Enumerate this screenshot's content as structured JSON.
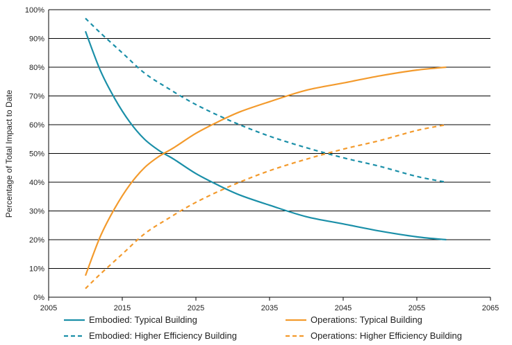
{
  "chart_data": {
    "type": "line",
    "title": "",
    "xlabel": "",
    "ylabel": "Percentage of Total Impact to Date",
    "xlim": [
      2005,
      2065
    ],
    "ylim": [
      0,
      100
    ],
    "x_ticks": [
      "2005",
      "2015",
      "2025",
      "2035",
      "2045",
      "2055",
      "2065"
    ],
    "y_ticks": [
      "0%",
      "10%",
      "20%",
      "30%",
      "40%",
      "50%",
      "60%",
      "70%",
      "80%",
      "90%",
      "100%"
    ],
    "grid": "horizontal",
    "legend_position": "bottom",
    "series": [
      {
        "name": "Embodied: Typical Building",
        "color": "#1a8fa8",
        "dash": "solid",
        "x": [
          2010,
          2012,
          2014,
          2016,
          2018,
          2020,
          2022,
          2025,
          2028,
          2031,
          2035,
          2040,
          2045,
          2050,
          2055,
          2059
        ],
        "values": [
          92.5,
          79,
          69,
          61,
          55,
          51,
          48,
          43,
          39,
          35.5,
          32,
          28,
          25.5,
          23,
          21,
          20
        ]
      },
      {
        "name": "Operations: Typical Building",
        "color": "#f39a2c",
        "dash": "solid",
        "x": [
          2010,
          2012,
          2014,
          2016,
          2018,
          2020,
          2022,
          2025,
          2028,
          2031,
          2035,
          2040,
          2045,
          2050,
          2055,
          2059
        ],
        "values": [
          7.5,
          21,
          31,
          39,
          45,
          49,
          52,
          57,
          61,
          64.5,
          68,
          72,
          74.5,
          77,
          79,
          80
        ]
      },
      {
        "name": "Embodied: Higher Efficiency Building",
        "color": "#1a8fa8",
        "dash": "dashed",
        "x": [
          2010,
          2012,
          2015,
          2018,
          2021,
          2025,
          2030,
          2035,
          2040,
          2045,
          2050,
          2055,
          2059
        ],
        "values": [
          97,
          92,
          85,
          78,
          73,
          67,
          61,
          56,
          52,
          48.5,
          45.5,
          42,
          40
        ]
      },
      {
        "name": "Operations: Higher Efficiency Building",
        "color": "#f39a2c",
        "dash": "dashed",
        "x": [
          2010,
          2012,
          2015,
          2018,
          2021,
          2025,
          2030,
          2035,
          2040,
          2045,
          2050,
          2055,
          2059
        ],
        "values": [
          3,
          8,
          15,
          22,
          27,
          33,
          39,
          44,
          48,
          51.5,
          54.5,
          58,
          60
        ]
      }
    ]
  }
}
